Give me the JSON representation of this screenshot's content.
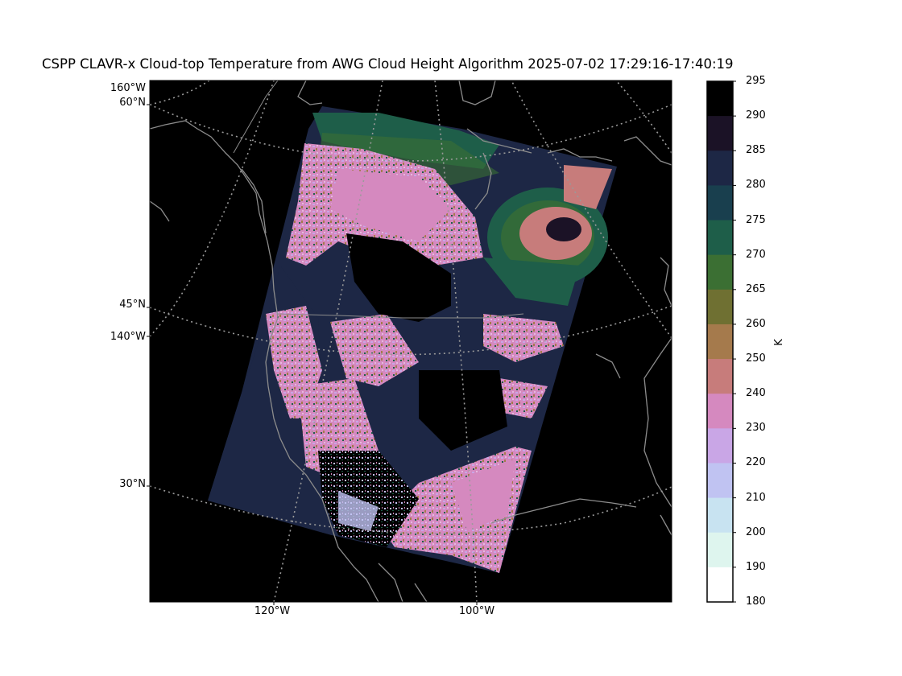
{
  "title": "CSPP CLAVR-x Cloud-top Temperature from AWG Cloud Height Algorithm 2025-07-02 17:29:16-17:40:19",
  "map": {
    "background_color": "#000000",
    "gridline_color": "#9a9a9a",
    "coastline_color": "#8c8c8c",
    "lat_labels": [
      "60°N",
      "45°N",
      "30°N"
    ],
    "lon_labels_left": [
      "160°W",
      "140°W"
    ],
    "lon_labels_bottom": [
      "120°W",
      "100°W"
    ]
  },
  "colorbar": {
    "unit": "K",
    "ticks": [
      "295",
      "290",
      "285",
      "280",
      "275",
      "270",
      "265",
      "260",
      "250",
      "240",
      "230",
      "220",
      "210",
      "200",
      "190",
      "180"
    ],
    "colors": [
      "#000000",
      "#1b1226",
      "#1d2745",
      "#193f4e",
      "#1e5e49",
      "#3b6f33",
      "#6f7032",
      "#a57a4c",
      "#c77c7b",
      "#d589bf",
      "#c9a6e6",
      "#c0c3f2",
      "#c8e3f1",
      "#def5ee",
      "#ffffff"
    ]
  }
}
